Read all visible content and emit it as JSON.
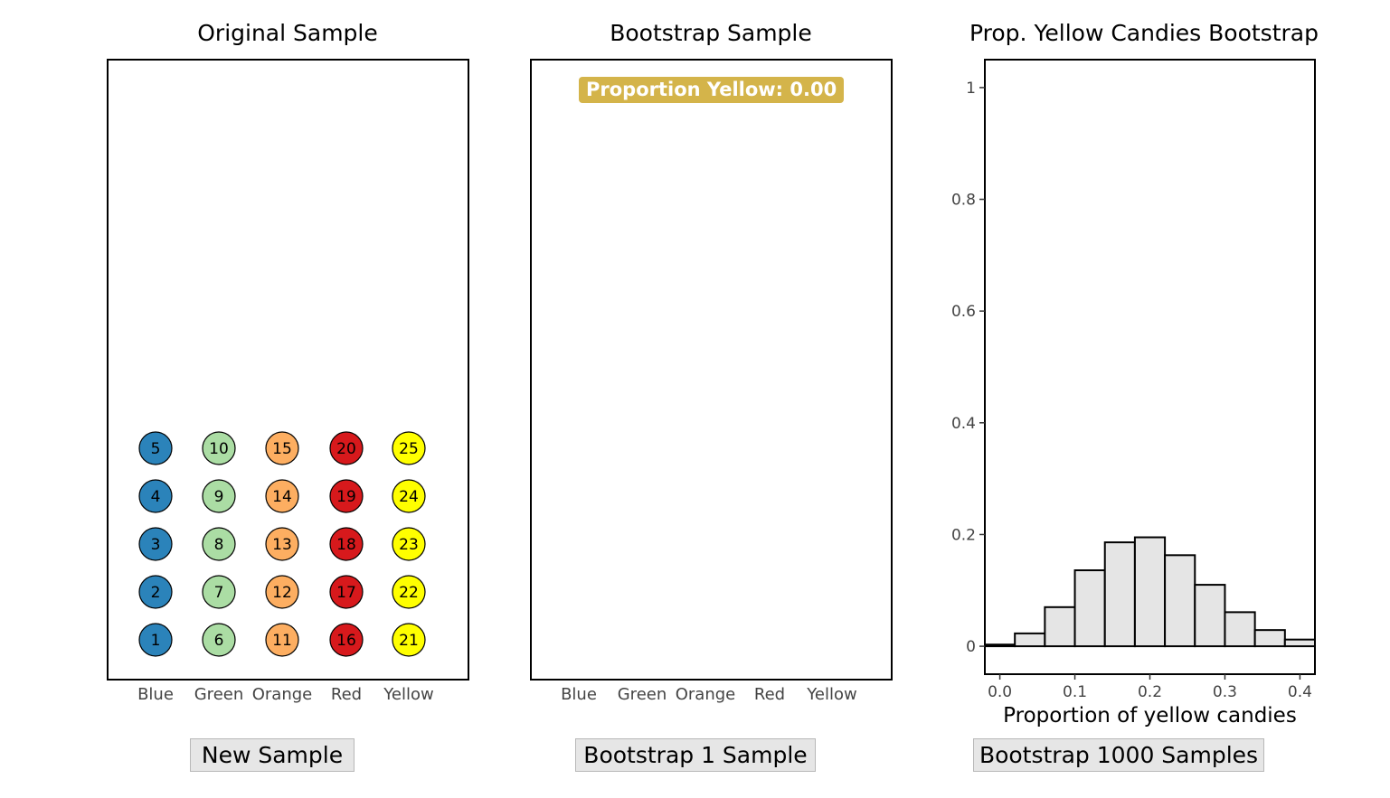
{
  "panels": {
    "original": {
      "title": "Original Sample",
      "button_label": "New Sample"
    },
    "bootstrap": {
      "title": "Bootstrap Sample",
      "button_label": "Bootstrap 1 Sample",
      "proportion_label": "Proportion Yellow: 0.00"
    },
    "histogram": {
      "title": "Prop. Yellow Candies Bootstrap",
      "button_label": "Bootstrap 1000 Samples"
    }
  },
  "categories": [
    "Blue",
    "Green",
    "Orange",
    "Red",
    "Yellow"
  ],
  "colors": {
    "Blue": "#2b83ba",
    "Green": "#abdda4",
    "Orange": "#fdae61",
    "Red": "#d7191c",
    "Yellow": "#ffff00",
    "badge": "#d4b44a",
    "histogram_fill": "#e5e5e5"
  },
  "candies": [
    {
      "id": 1,
      "color": "Blue"
    },
    {
      "id": 2,
      "color": "Blue"
    },
    {
      "id": 3,
      "color": "Blue"
    },
    {
      "id": 4,
      "color": "Blue"
    },
    {
      "id": 5,
      "color": "Blue"
    },
    {
      "id": 6,
      "color": "Green"
    },
    {
      "id": 7,
      "color": "Green"
    },
    {
      "id": 8,
      "color": "Green"
    },
    {
      "id": 9,
      "color": "Green"
    },
    {
      "id": 10,
      "color": "Green"
    },
    {
      "id": 11,
      "color": "Orange"
    },
    {
      "id": 12,
      "color": "Orange"
    },
    {
      "id": 13,
      "color": "Orange"
    },
    {
      "id": 14,
      "color": "Orange"
    },
    {
      "id": 15,
      "color": "Orange"
    },
    {
      "id": 16,
      "color": "Red"
    },
    {
      "id": 17,
      "color": "Red"
    },
    {
      "id": 18,
      "color": "Red"
    },
    {
      "id": 19,
      "color": "Red"
    },
    {
      "id": 20,
      "color": "Red"
    },
    {
      "id": 21,
      "color": "Yellow"
    },
    {
      "id": 22,
      "color": "Yellow"
    },
    {
      "id": 23,
      "color": "Yellow"
    },
    {
      "id": 24,
      "color": "Yellow"
    },
    {
      "id": 25,
      "color": "Yellow"
    }
  ],
  "chart_data": {
    "type": "bar",
    "title": "Prop. Yellow Candies Bootstrap",
    "xlabel": "Proportion of yellow candies",
    "ylabel": "",
    "xlim": [
      -0.02,
      0.42
    ],
    "ylim": [
      -0.05,
      1.05
    ],
    "x_ticks": [
      "0.0",
      "0.1",
      "0.2",
      "0.3",
      "0.4"
    ],
    "y_ticks": [
      "0",
      "0.2",
      "0.4",
      "0.6",
      "0.8",
      "1"
    ],
    "bin_width": 0.04,
    "bins": [
      {
        "x0": -0.02,
        "x1": 0.02,
        "value": 0.003
      },
      {
        "x0": 0.02,
        "x1": 0.06,
        "value": 0.023
      },
      {
        "x0": 0.06,
        "x1": 0.1,
        "value": 0.07
      },
      {
        "x0": 0.1,
        "x1": 0.14,
        "value": 0.136
      },
      {
        "x0": 0.14,
        "x1": 0.18,
        "value": 0.186
      },
      {
        "x0": 0.18,
        "x1": 0.22,
        "value": 0.195
      },
      {
        "x0": 0.22,
        "x1": 0.26,
        "value": 0.163
      },
      {
        "x0": 0.26,
        "x1": 0.3,
        "value": 0.11
      },
      {
        "x0": 0.3,
        "x1": 0.34,
        "value": 0.061
      },
      {
        "x0": 0.34,
        "x1": 0.38,
        "value": 0.029
      },
      {
        "x0": 0.38,
        "x1": 0.42,
        "value": 0.012
      }
    ],
    "grid": false
  }
}
